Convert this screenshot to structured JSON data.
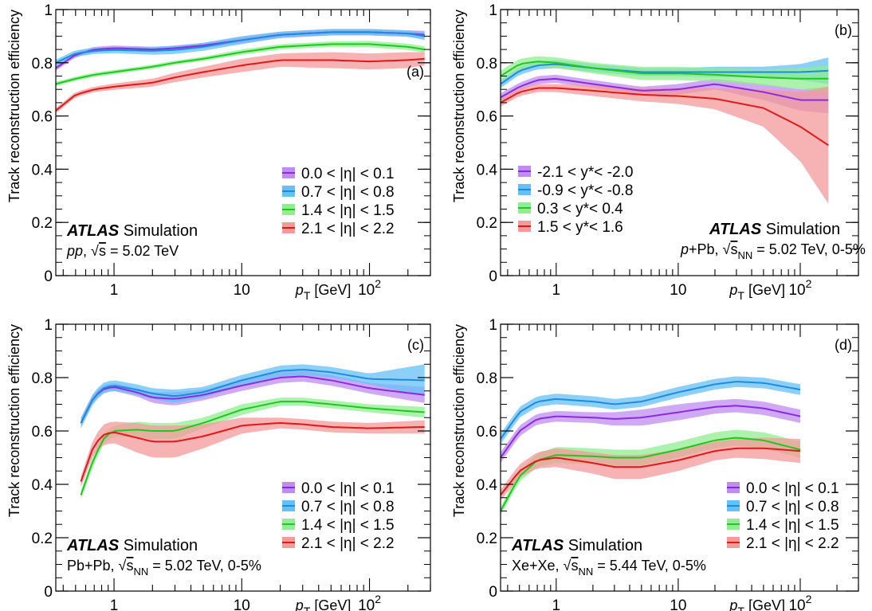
{
  "figure": {
    "ylabel": "Track reconstruction efficiency",
    "xlabel_main": "p",
    "xlabel_sub": "T",
    "xlabel_unit": " [GeV]",
    "atlas": "ATLAS",
    "simulation": " Simulation"
  },
  "chart_data": [
    {
      "type": "area",
      "panel": "(a)",
      "system": {
        "prefix": "",
        "italic": "pp",
        "middle": ", ",
        "root": "s",
        "sub": "",
        "rest": " = 5.02 TeV"
      },
      "xscale": "log",
      "xlim": [
        0.35,
        300
      ],
      "ylim": [
        0,
        1
      ],
      "xticks": [
        {
          "v": 1,
          "label": "1"
        },
        {
          "v": 10,
          "label": "10"
        },
        {
          "v": 100,
          "label": "10",
          "sup": "2"
        }
      ],
      "yticks": [
        {
          "v": 0,
          "label": "0"
        },
        {
          "v": 0.2,
          "label": "0.2"
        },
        {
          "v": 0.4,
          "label": "0.4"
        },
        {
          "v": 0.6,
          "label": "0.6"
        },
        {
          "v": 0.8,
          "label": "0.8"
        },
        {
          "v": 1,
          "label": "1"
        }
      ],
      "series": [
        {
          "name": "0.0 < |η| < 0.1",
          "color": "#8a2be2",
          "band": "#c08cf0",
          "x": [
            0.35,
            0.5,
            0.7,
            1,
            2,
            3,
            5,
            10,
            20,
            50,
            100,
            200,
            270
          ],
          "y": [
            0.78,
            0.83,
            0.85,
            0.855,
            0.85,
            0.855,
            0.865,
            0.885,
            0.905,
            0.915,
            0.915,
            0.91,
            0.905
          ],
          "err": [
            0.01,
            0.01,
            0.01,
            0.01,
            0.01,
            0.01,
            0.01,
            0.012,
            0.012,
            0.012,
            0.012,
            0.012,
            0.015
          ]
        },
        {
          "name": "0.7 < |η| < 0.8",
          "color": "#1e8cdc",
          "band": "#66c0f8",
          "x": [
            0.35,
            0.5,
            0.7,
            1,
            2,
            3,
            5,
            10,
            20,
            50,
            100,
            200,
            270
          ],
          "y": [
            0.8,
            0.835,
            0.845,
            0.848,
            0.845,
            0.848,
            0.86,
            0.885,
            0.905,
            0.915,
            0.915,
            0.91,
            0.9
          ],
          "err": [
            0.012,
            0.012,
            0.012,
            0.012,
            0.015,
            0.015,
            0.015,
            0.015,
            0.012,
            0.012,
            0.012,
            0.012,
            0.015
          ]
        },
        {
          "name": "1.4 < |η| < 1.5",
          "color": "#1ec81e",
          "band": "#90ee90",
          "x": [
            0.35,
            0.5,
            0.7,
            1,
            2,
            3,
            5,
            10,
            20,
            50,
            100,
            200,
            270
          ],
          "y": [
            0.72,
            0.74,
            0.755,
            0.765,
            0.785,
            0.8,
            0.815,
            0.84,
            0.86,
            0.87,
            0.87,
            0.86,
            0.85
          ],
          "err": [
            0.008,
            0.008,
            0.008,
            0.008,
            0.008,
            0.008,
            0.008,
            0.01,
            0.01,
            0.01,
            0.012,
            0.012,
            0.012
          ]
        },
        {
          "name": "2.1 < |η| < 2.2",
          "color": "#e01818",
          "band": "#f49a9a",
          "x": [
            0.35,
            0.5,
            0.7,
            1,
            2,
            3,
            5,
            10,
            20,
            50,
            100,
            200,
            270
          ],
          "y": [
            0.62,
            0.68,
            0.7,
            0.71,
            0.725,
            0.745,
            0.765,
            0.79,
            0.81,
            0.81,
            0.805,
            0.81,
            0.815
          ],
          "err": [
            0.01,
            0.01,
            0.01,
            0.012,
            0.015,
            0.018,
            0.02,
            0.025,
            0.025,
            0.03,
            0.03,
            0.03,
            0.025
          ]
        }
      ]
    },
    {
      "type": "area",
      "panel": "(b)",
      "system": {
        "prefix": "",
        "italic": "p",
        "middle": "+Pb, ",
        "root": "s",
        "sub": "NN",
        "rest": " = 5.02 TeV, 0-5%"
      },
      "xscale": "log",
      "xlim": [
        0.35,
        300
      ],
      "ylim": [
        0,
        1
      ],
      "xticks": [
        {
          "v": 1,
          "label": "1"
        },
        {
          "v": 10,
          "label": "10"
        },
        {
          "v": 100,
          "label": "10",
          "sup": "2"
        }
      ],
      "yticks": [
        {
          "v": 0,
          "label": "0"
        },
        {
          "v": 0.2,
          "label": "0.2"
        },
        {
          "v": 0.4,
          "label": "0.4"
        },
        {
          "v": 0.6,
          "label": "0.6"
        },
        {
          "v": 0.8,
          "label": "0.8"
        },
        {
          "v": 1,
          "label": "1"
        }
      ],
      "series": [
        {
          "name": "-2.1 < y*< -2.0",
          "color": "#8a2be2",
          "band": "#c08cf0",
          "x": [
            0.35,
            0.5,
            0.7,
            1,
            2,
            5,
            10,
            20,
            50,
            100,
            170
          ],
          "y": [
            0.67,
            0.71,
            0.735,
            0.74,
            0.72,
            0.695,
            0.7,
            0.72,
            0.69,
            0.66,
            0.66
          ],
          "err": [
            0.015,
            0.015,
            0.015,
            0.015,
            0.015,
            0.015,
            0.02,
            0.02,
            0.03,
            0.04,
            0.05
          ]
        },
        {
          "name": "-0.9 < y*< -0.8",
          "color": "#1e8cdc",
          "band": "#66c0f8",
          "x": [
            0.35,
            0.5,
            0.7,
            1,
            2,
            5,
            10,
            20,
            50,
            100,
            170
          ],
          "y": [
            0.72,
            0.77,
            0.79,
            0.795,
            0.78,
            0.765,
            0.765,
            0.765,
            0.765,
            0.765,
            0.77
          ],
          "err": [
            0.015,
            0.015,
            0.015,
            0.015,
            0.015,
            0.015,
            0.015,
            0.02,
            0.02,
            0.03,
            0.05
          ]
        },
        {
          "name": "0.3 < y*< 0.4",
          "color": "#1ec81e",
          "band": "#90ee90",
          "x": [
            0.35,
            0.5,
            0.7,
            1,
            2,
            5,
            10,
            20,
            50,
            100,
            170
          ],
          "y": [
            0.75,
            0.795,
            0.805,
            0.8,
            0.78,
            0.76,
            0.76,
            0.755,
            0.745,
            0.74,
            0.74
          ],
          "err": [
            0.02,
            0.02,
            0.02,
            0.02,
            0.02,
            0.025,
            0.025,
            0.025,
            0.03,
            0.04,
            0.05
          ]
        },
        {
          "name": "1.5 < y*< 1.6",
          "color": "#e01818",
          "band": "#f49a9a",
          "x": [
            0.35,
            0.5,
            0.7,
            1,
            2,
            5,
            10,
            20,
            50,
            100,
            170
          ],
          "y": [
            0.65,
            0.69,
            0.705,
            0.705,
            0.695,
            0.68,
            0.675,
            0.665,
            0.63,
            0.56,
            0.49
          ],
          "err": [
            0.015,
            0.015,
            0.015,
            0.015,
            0.02,
            0.025,
            0.03,
            0.04,
            0.07,
            0.13,
            0.22
          ]
        }
      ]
    },
    {
      "type": "area",
      "panel": "(c)",
      "system": {
        "prefix": "Pb+Pb, ",
        "italic": "",
        "middle": "",
        "root": "s",
        "sub": "NN",
        "rest": " = 5.02 TeV, 0-5%"
      },
      "xscale": "log",
      "xlim": [
        0.35,
        300
      ],
      "ylim": [
        0,
        1
      ],
      "xticks": [
        {
          "v": 1,
          "label": "1"
        },
        {
          "v": 10,
          "label": "10"
        },
        {
          "v": 100,
          "label": "10",
          "sup": "2"
        }
      ],
      "yticks": [
        {
          "v": 0,
          "label": "0"
        },
        {
          "v": 0.2,
          "label": "0.2"
        },
        {
          "v": 0.4,
          "label": "0.4"
        },
        {
          "v": 0.6,
          "label": "0.6"
        },
        {
          "v": 0.8,
          "label": "0.8"
        },
        {
          "v": 1,
          "label": "1"
        }
      ],
      "series": [
        {
          "name": "0.0 < |η| < 0.1",
          "color": "#8a2be2",
          "band": "#c08cf0",
          "x": [
            0.55,
            0.7,
            0.85,
            1,
            1.5,
            2,
            3,
            5,
            10,
            20,
            30,
            50,
            100,
            270
          ],
          "y": [
            0.63,
            0.73,
            0.76,
            0.765,
            0.745,
            0.725,
            0.72,
            0.735,
            0.77,
            0.8,
            0.805,
            0.79,
            0.76,
            0.735
          ],
          "err": [
            0.015,
            0.015,
            0.015,
            0.015,
            0.015,
            0.02,
            0.025,
            0.02,
            0.02,
            0.02,
            0.02,
            0.02,
            0.02,
            0.03
          ]
        },
        {
          "name": "0.7 < |η| < 0.8",
          "color": "#1e8cdc",
          "band": "#66c0f8",
          "x": [
            0.55,
            0.7,
            0.85,
            1,
            1.5,
            2,
            3,
            5,
            10,
            20,
            30,
            50,
            100,
            270
          ],
          "y": [
            0.63,
            0.73,
            0.765,
            0.77,
            0.755,
            0.74,
            0.73,
            0.745,
            0.79,
            0.825,
            0.83,
            0.82,
            0.795,
            0.79
          ],
          "err": [
            0.02,
            0.02,
            0.02,
            0.02,
            0.02,
            0.02,
            0.025,
            0.02,
            0.02,
            0.02,
            0.02,
            0.02,
            0.02,
            0.06
          ]
        },
        {
          "name": "1.4 < |η| < 1.5",
          "color": "#1ec81e",
          "band": "#90ee90",
          "x": [
            0.55,
            0.7,
            0.85,
            1,
            1.5,
            2,
            3,
            5,
            10,
            20,
            30,
            50,
            100,
            270
          ],
          "y": [
            0.36,
            0.5,
            0.58,
            0.6,
            0.605,
            0.6,
            0.6,
            0.63,
            0.68,
            0.71,
            0.71,
            0.7,
            0.685,
            0.67
          ],
          "err": [
            0.015,
            0.02,
            0.02,
            0.02,
            0.03,
            0.03,
            0.03,
            0.02,
            0.02,
            0.015,
            0.015,
            0.015,
            0.015,
            0.02
          ]
        },
        {
          "name": "2.1 < |η| < 2.2",
          "color": "#e01818",
          "band": "#f49a9a",
          "x": [
            0.55,
            0.7,
            0.85,
            1,
            1.5,
            2,
            3,
            5,
            10,
            20,
            30,
            50,
            100,
            270
          ],
          "y": [
            0.41,
            0.55,
            0.59,
            0.595,
            0.575,
            0.56,
            0.56,
            0.58,
            0.62,
            0.63,
            0.625,
            0.615,
            0.61,
            0.615
          ],
          "err": [
            0.02,
            0.03,
            0.04,
            0.04,
            0.055,
            0.06,
            0.06,
            0.045,
            0.03,
            0.02,
            0.02,
            0.02,
            0.02,
            0.025
          ]
        }
      ]
    },
    {
      "type": "area",
      "panel": "(d)",
      "system": {
        "prefix": "Xe+Xe, ",
        "italic": "",
        "middle": "",
        "root": "s",
        "sub": "NN",
        "rest": " = 5.44 TeV, 0-5%"
      },
      "xscale": "log",
      "xlim": [
        0.35,
        300
      ],
      "ylim": [
        0,
        1
      ],
      "xticks": [
        {
          "v": 1,
          "label": "1"
        },
        {
          "v": 10,
          "label": "10"
        },
        {
          "v": 100,
          "label": "10",
          "sup": "2"
        }
      ],
      "yticks": [
        {
          "v": 0,
          "label": "0"
        },
        {
          "v": 0.2,
          "label": "0.2"
        },
        {
          "v": 0.4,
          "label": "0.4"
        },
        {
          "v": 0.6,
          "label": "0.6"
        },
        {
          "v": 0.8,
          "label": "0.8"
        },
        {
          "v": 1,
          "label": "1"
        }
      ],
      "series": [
        {
          "name": "0.0 < |η| < 0.1",
          "color": "#8a2be2",
          "band": "#c08cf0",
          "x": [
            0.35,
            0.5,
            0.7,
            1,
            2,
            3,
            5,
            10,
            20,
            30,
            50,
            100
          ],
          "y": [
            0.5,
            0.6,
            0.645,
            0.655,
            0.65,
            0.645,
            0.65,
            0.67,
            0.69,
            0.695,
            0.685,
            0.655
          ],
          "err": [
            0.02,
            0.02,
            0.02,
            0.02,
            0.02,
            0.025,
            0.03,
            0.03,
            0.025,
            0.025,
            0.025,
            0.025
          ]
        },
        {
          "name": "0.7 < |η| < 0.8",
          "color": "#1e8cdc",
          "band": "#66c0f8",
          "x": [
            0.35,
            0.5,
            0.7,
            1,
            2,
            3,
            5,
            10,
            20,
            30,
            50,
            100
          ],
          "y": [
            0.57,
            0.67,
            0.71,
            0.72,
            0.71,
            0.7,
            0.71,
            0.745,
            0.775,
            0.785,
            0.78,
            0.755
          ],
          "err": [
            0.02,
            0.02,
            0.02,
            0.02,
            0.02,
            0.02,
            0.02,
            0.02,
            0.02,
            0.02,
            0.02,
            0.02
          ]
        },
        {
          "name": "1.4 < |η| < 1.5",
          "color": "#1ec81e",
          "band": "#90ee90",
          "x": [
            0.35,
            0.5,
            0.7,
            1,
            2,
            3,
            5,
            10,
            20,
            30,
            50,
            100
          ],
          "y": [
            0.3,
            0.43,
            0.49,
            0.51,
            0.505,
            0.5,
            0.5,
            0.53,
            0.565,
            0.575,
            0.565,
            0.53
          ],
          "err": [
            0.015,
            0.02,
            0.025,
            0.03,
            0.03,
            0.03,
            0.03,
            0.03,
            0.03,
            0.03,
            0.03,
            0.03
          ]
        },
        {
          "name": "2.1 < |η| < 2.2",
          "color": "#e01818",
          "band": "#f49a9a",
          "x": [
            0.35,
            0.5,
            0.7,
            1,
            2,
            3,
            5,
            10,
            20,
            30,
            50,
            100
          ],
          "y": [
            0.36,
            0.45,
            0.49,
            0.5,
            0.48,
            0.465,
            0.465,
            0.49,
            0.525,
            0.535,
            0.535,
            0.525
          ],
          "err": [
            0.02,
            0.025,
            0.03,
            0.035,
            0.04,
            0.045,
            0.045,
            0.04,
            0.035,
            0.035,
            0.04,
            0.045
          ]
        }
      ]
    }
  ]
}
